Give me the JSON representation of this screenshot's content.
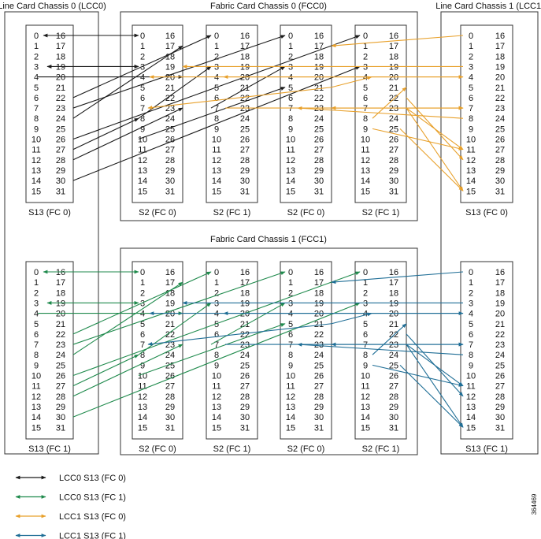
{
  "chassis_titles": {
    "lcc0": "Line Card Chassis 0 (LCC0)",
    "fcc0": "Fabric Card Chassis 0 (FCC0)",
    "lcc1": "Line Card Chassis 1 (LCC1)",
    "fcc1": "Fabric Card Chassis 1 (FCC1)"
  },
  "port_pairs": [
    [
      "0",
      "16"
    ],
    [
      "1",
      "17"
    ],
    [
      "2",
      "18"
    ],
    [
      "3",
      "19"
    ],
    [
      "4",
      "20"
    ],
    [
      "5",
      "21"
    ],
    [
      "6",
      "22"
    ],
    [
      "7",
      "23"
    ],
    [
      "8",
      "24"
    ],
    [
      "9",
      "25"
    ],
    [
      "10",
      "26"
    ],
    [
      "11",
      "27"
    ],
    [
      "12",
      "28"
    ],
    [
      "13",
      "29"
    ],
    [
      "14",
      "30"
    ],
    [
      "15",
      "31"
    ]
  ],
  "cards_top": [
    "S13 (FC 0)",
    "S2 (FC 0)",
    "S2 (FC 1)",
    "S2 (FC 0)",
    "S2 (FC 1)",
    "S13 (FC 0)"
  ],
  "cards_bottom": [
    "S13 (FC 1)",
    "S2 (FC 0)",
    "S2 (FC 1)",
    "S2 (FC 0)",
    "S2 (FC 1)",
    "S13 (FC 1)"
  ],
  "legend": [
    {
      "label": "LCC0  S13 (FC 0)",
      "color": "#1a1a1a"
    },
    {
      "label": "LCC0  S13 (FC 1)",
      "color": "#1f8a4c"
    },
    {
      "label": "LCC1  S13 (FC 0)",
      "color": "#e8a02a"
    },
    {
      "label": "LCC1  S13 (FC 1)",
      "color": "#1f6e96"
    }
  ],
  "figure_id": "364469"
}
